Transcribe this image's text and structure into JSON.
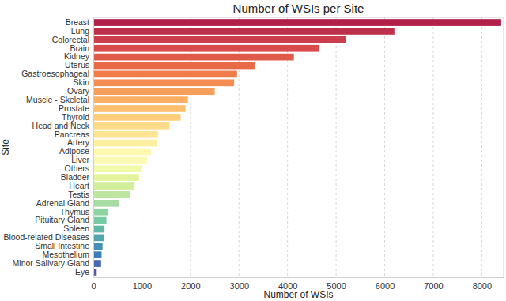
{
  "chart_data": {
    "type": "bar",
    "orientation": "horizontal",
    "title": "Number of WSIs per Site",
    "x_label": "Number of WSIs",
    "y_label": "Site",
    "categories": [
      "Breast",
      "Lung",
      "Colorectal",
      "Brain",
      "Kidney",
      "Uterus",
      "Gastroesophageal",
      "Skin",
      "Ovary",
      "Muscle - Skeletal",
      "Prostate",
      "Thyroid",
      "Head and Neck",
      "Pancreas",
      "Artery",
      "Adipose",
      "Liver",
      "Others",
      "Bladder",
      "Heart",
      "Testis",
      "Adrenal Gland",
      "Thymus",
      "Pituitary Gland",
      "Spleen",
      "Blood-related Diseases",
      "Small Intestine",
      "Mesothelium",
      "Minor Salivary Gland",
      "Eye"
    ],
    "values": [
      8400,
      6200,
      5200,
      4650,
      4130,
      3320,
      2960,
      2900,
      2500,
      1950,
      1900,
      1800,
      1570,
      1330,
      1310,
      1190,
      1110,
      990,
      940,
      850,
      760,
      520,
      300,
      270,
      230,
      220,
      190,
      170,
      160,
      70
    ],
    "colors": [
      "#b0204a",
      "#be2f4c",
      "#cc3d4e",
      "#d84a4c",
      "#e05a49",
      "#e96a47",
      "#f07c4a",
      "#f48d52",
      "#f79e5b",
      "#fbaf65",
      "#fcbf70",
      "#fdcd7c",
      "#fedb88",
      "#fee593",
      "#feee9f",
      "#fef7b0",
      "#fbfbb5",
      "#f2f9a8",
      "#e4f49c",
      "#d2ed9c",
      "#bde5a0",
      "#a6dca4",
      "#8fd2a4",
      "#78c8a5",
      "#62b8a7",
      "#52a4ae",
      "#4490b5",
      "#3c7db8",
      "#4769ad",
      "#5656a4"
    ],
    "xlim": [
      0,
      8450
    ],
    "xticks": [
      0,
      1000,
      2000,
      3000,
      4000,
      5000,
      6000,
      7000,
      8000
    ],
    "grid": true
  }
}
